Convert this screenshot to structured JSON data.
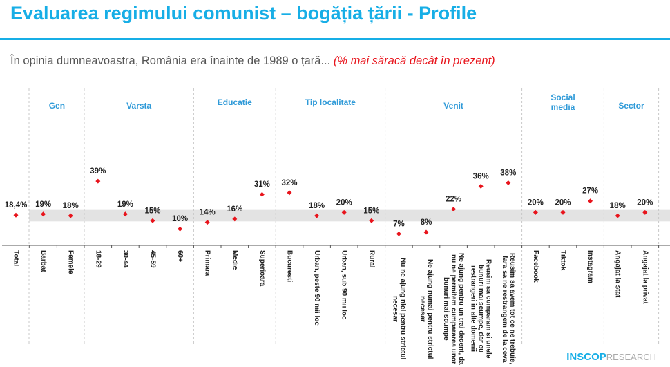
{
  "title": "Evaluarea regimului comunist – bogăția țării - Profile",
  "subtitle": "În opinia dumneavoastra, România era înainte de 1989 o țară...",
  "subtitle_note": "(% mai săracă decât în prezent)",
  "logo": {
    "brand": "INSCOP",
    "suffix": "RESEARCH"
  },
  "colors": {
    "title": "#17aee6",
    "marker": "#e8141c",
    "band": "#e3e3e3",
    "group": "#2f9ad8"
  },
  "chart_data": {
    "type": "scatter",
    "ylim": [
      0,
      45
    ],
    "reference_band": [
      15,
      22
    ],
    "groups": [
      {
        "label": "Gen",
        "categories": [
          "Barbat",
          "Femeie"
        ]
      },
      {
        "label": "Varsta",
        "categories": [
          "18-29",
          "30-44",
          "45-59",
          "60+"
        ]
      },
      {
        "label": "Educatie",
        "categories": [
          "Primara",
          "Medie",
          "Superioara"
        ]
      },
      {
        "label": "Tip localitate",
        "categories": [
          "Bucuresti",
          "Urban, peste 90 mii loc",
          "Urban, sub 90 mii loc",
          "Rural"
        ]
      },
      {
        "label": "Venit",
        "categories": [
          "Nu ne ajung nici pentru strictul necesar",
          "Ne ajung numai pentru strictul necesar",
          "Ne ajung pentru un trai decent, dar nu ne permitem cumpararea unor bunuri mai scumpe",
          "Reusim sa cumparam si unele bunuri mai scumpe, dar cu restrangeri in alte domenii",
          "Reusim sa avem tot ce ne trebuie, fara sa ne restrangem de la ceva"
        ]
      },
      {
        "label": "Social media",
        "categories": [
          "Facebook",
          "Tiktok",
          "Instagram"
        ]
      },
      {
        "label": "Sector",
        "categories": [
          "Angajat la stat",
          "Angajat la privat"
        ]
      }
    ],
    "categories": [
      "Total",
      "Barbat",
      "Femeie",
      "18-29",
      "30-44",
      "45-59",
      "60+",
      "Primara",
      "Medie",
      "Superioara",
      "Bucuresti",
      "Urban, peste 90 mii loc",
      "Urban, sub 90 mii loc",
      "Rural",
      "Nu ne ajung nici pentru strictul necesar",
      "Ne ajung numai pentru strictul necesar",
      "Ne ajung pentru un trai decent, da nu ne permitem cumpararea unor bunuri mai scumpe",
      "Reusim sa cumparam si unele bunuri mai scumpe, dar cu restrangeri in alte domenii",
      "Reusim sa avem tot ce ne trebuie, fara sa ne restrangem de la ceva",
      "Facebook",
      "Tiktok",
      "Instagram",
      "Angajat la stat",
      "Angajat la privat"
    ],
    "values": [
      18.4,
      19,
      18,
      39,
      19,
      15,
      10,
      14,
      16,
      31,
      32,
      18,
      20,
      15,
      7,
      8,
      22,
      36,
      38,
      20,
      20,
      27,
      18,
      20
    ],
    "labels": [
      "18,4%",
      "19%",
      "18%",
      "39%",
      "19%",
      "15%",
      "10%",
      "14%",
      "16%",
      "31%",
      "32%",
      "18%",
      "20%",
      "15%",
      "7%",
      "8%",
      "22%",
      "36%",
      "38%",
      "20%",
      "20%",
      "27%",
      "18%",
      "20%"
    ]
  }
}
